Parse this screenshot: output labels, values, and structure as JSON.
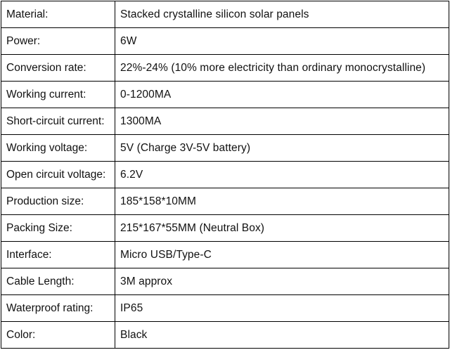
{
  "specs": [
    {
      "label": "Material:",
      "value": "Stacked crystalline silicon solar panels"
    },
    {
      "label": "Power:",
      "value": "6W"
    },
    {
      "label": "Conversion rate:",
      "value": "22%-24% (10% more electricity than ordinary monocrystalline)"
    },
    {
      "label": "Working current:",
      "value": "0-1200MA"
    },
    {
      "label": "Short-circuit current:",
      "value": "1300MA"
    },
    {
      "label": "Working voltage:",
      "value": "5V (Charge 3V-5V battery)"
    },
    {
      "label": "Open circuit voltage:",
      "value": "6.2V"
    },
    {
      "label": "Production size:",
      "value": "185*158*10MM"
    },
    {
      "label": "Packing Size:",
      "value": "215*167*55MM (Neutral Box)"
    },
    {
      "label": "Interface:",
      "value": "Micro USB/Type-C"
    },
    {
      "label": "Cable Length:",
      "value": "3M approx"
    },
    {
      "label": "Waterproof rating:",
      "value": "IP65"
    },
    {
      "label": "Color:",
      "value": "Black"
    }
  ]
}
